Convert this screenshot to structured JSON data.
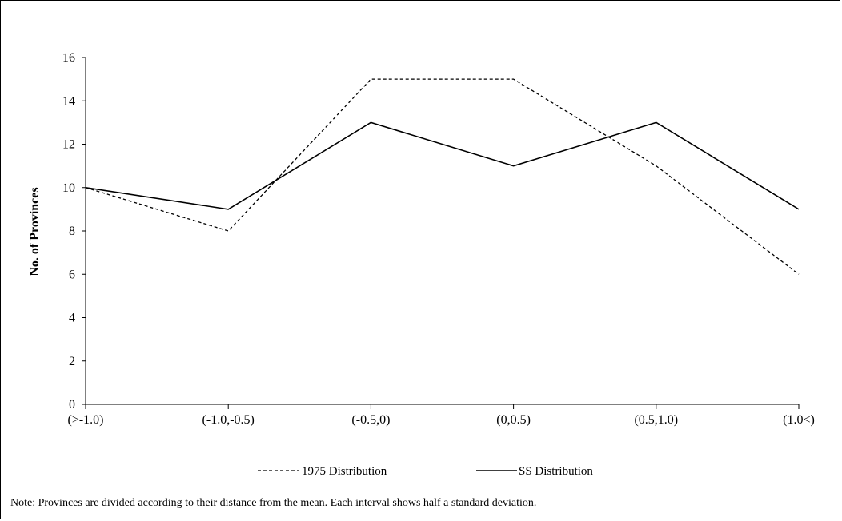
{
  "chart_data": {
    "type": "line",
    "categories": [
      "(>-1.0)",
      "(-1.0,-0.5)",
      "(-0.5,0)",
      "(0,0.5)",
      "(0.5,1.0)",
      "(1.0<)"
    ],
    "series": [
      {
        "name": "1975 Distribution",
        "values": [
          10,
          8,
          15,
          15,
          11,
          6
        ],
        "style": "dashed",
        "color": "#000000"
      },
      {
        "name": "SS Distribution",
        "values": [
          10,
          9,
          13,
          11,
          13,
          9
        ],
        "style": "solid",
        "color": "#000000"
      }
    ],
    "ylabel": "No. of Provinces",
    "xlabel": "",
    "ylim": [
      0,
      16
    ],
    "yticks": [
      0,
      2,
      4,
      6,
      8,
      10,
      12,
      14,
      16
    ],
    "grid": false,
    "legend": "bottom"
  },
  "note": "Note: Provinces are divided according to their distance from the mean.  Each interval shows half a standard deviation."
}
